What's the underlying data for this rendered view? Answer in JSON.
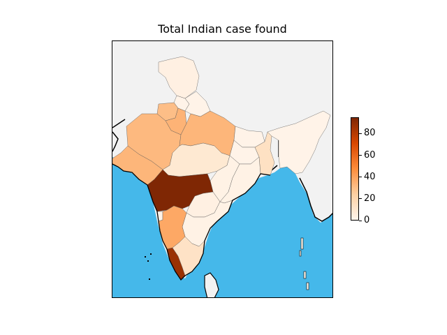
{
  "title": "Total Indian case found",
  "colors": {
    "ocean": "#45b8ea",
    "land_outside": "#f2f2f2",
    "cmap": [
      "#fff5eb",
      "#fdd0a2",
      "#fd8d3c",
      "#d94801",
      "#7f2704"
    ]
  },
  "colorbar": {
    "min": 0,
    "max": 95,
    "ticks": [
      {
        "value": 0,
        "label": "0"
      },
      {
        "value": 20,
        "label": "20"
      },
      {
        "value": 40,
        "label": "40"
      },
      {
        "value": 60,
        "label": "60"
      },
      {
        "value": 80,
        "label": "80"
      }
    ]
  },
  "regions": [
    {
      "name": "jammu-kashmir",
      "value": 3
    },
    {
      "name": "himachal",
      "value": 1
    },
    {
      "name": "punjab",
      "value": 30
    },
    {
      "name": "haryana",
      "value": 34
    },
    {
      "name": "rajasthan",
      "value": 32
    },
    {
      "name": "uttar-pradesh",
      "value": 33
    },
    {
      "name": "uttarakhand",
      "value": 1
    },
    {
      "name": "gujarat",
      "value": 33
    },
    {
      "name": "madhya-pradesh",
      "value": 8
    },
    {
      "name": "bihar",
      "value": 1
    },
    {
      "name": "jharkhand",
      "value": 1
    },
    {
      "name": "west-bengal",
      "value": 13
    },
    {
      "name": "chhattisgarh",
      "value": 2
    },
    {
      "name": "odisha",
      "value": 2
    },
    {
      "name": "maharashtra",
      "value": 95
    },
    {
      "name": "telangana",
      "value": 3
    },
    {
      "name": "andhra-pradesh",
      "value": 2
    },
    {
      "name": "karnataka",
      "value": 38
    },
    {
      "name": "goa",
      "value": 1
    },
    {
      "name": "kerala",
      "value": 88
    },
    {
      "name": "tamil-nadu",
      "value": 12
    },
    {
      "name": "northeast",
      "value": 1
    }
  ]
}
